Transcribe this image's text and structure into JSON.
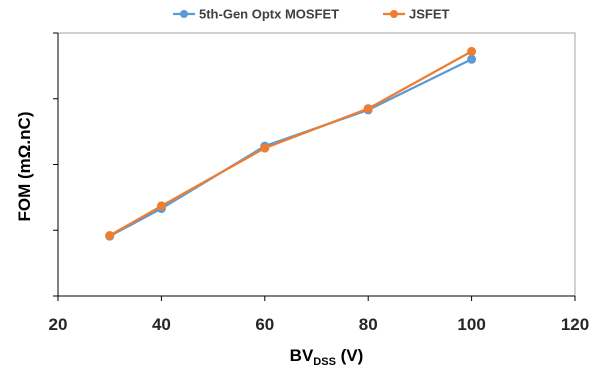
{
  "chart_data": {
    "type": "line",
    "title": "",
    "xlabel": {
      "main": "BV",
      "sub": "DSS",
      "suffix": " (V)"
    },
    "ylabel": "FOM (mΩ.nC)",
    "xlim": [
      20,
      120
    ],
    "xticks": [
      "20",
      "40",
      "60",
      "80",
      "100",
      "120"
    ],
    "ylim": [
      0,
      4
    ],
    "y_tick_labels_shown": false,
    "grid": false,
    "legend_position": "top-center",
    "x": [
      30,
      40,
      60,
      80,
      100
    ],
    "series": [
      {
        "name": "5th-Gen Optx MOSFET",
        "color": "#5b9bd5",
        "values": [
          0.91,
          1.33,
          2.28,
          2.83,
          3.6
        ]
      },
      {
        "name": "JSFET",
        "color": "#ed7d31",
        "values": [
          0.92,
          1.37,
          2.25,
          2.85,
          3.72
        ]
      }
    ]
  }
}
